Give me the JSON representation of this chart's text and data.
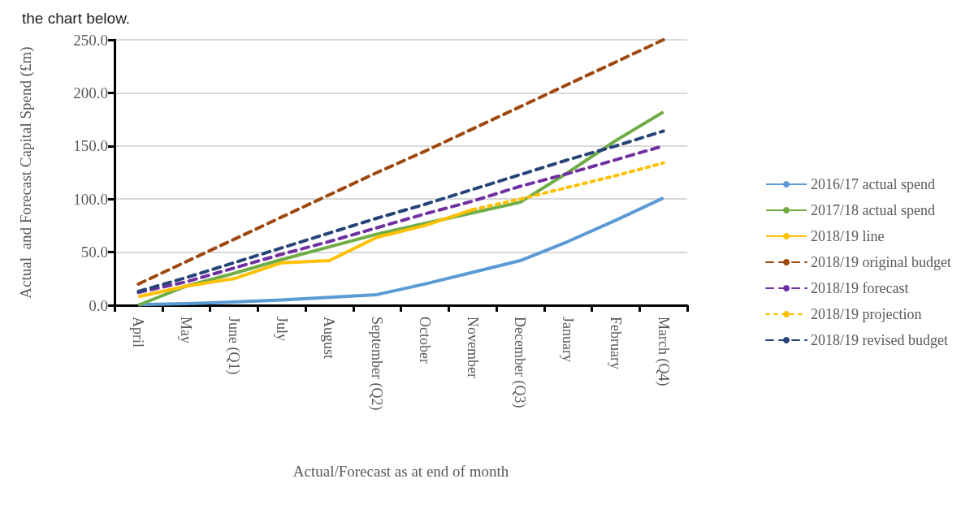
{
  "chart_data": {
    "type": "line",
    "annotations": [
      "the chart below."
    ],
    "xlabel": "Actual/Forecast as at end of month",
    "ylabel": "Actual  and Forecast Capital Spend (£m)",
    "categories": [
      "April",
      "May",
      "June (Q1)",
      "July",
      "August",
      "September (Q2)",
      "October",
      "November",
      "December (Q3)",
      "January",
      "February",
      "March (Q4)"
    ],
    "ylim": [
      0,
      250
    ],
    "yticks": [
      {
        "value": 0,
        "label": "0.0"
      },
      {
        "value": 50,
        "label": "50.0"
      },
      {
        "value": 100,
        "label": "100.0"
      },
      {
        "value": 150,
        "label": "150.0"
      },
      {
        "value": 200,
        "label": "200.0"
      },
      {
        "value": 250,
        "label": "250.0"
      }
    ],
    "grid": "y",
    "legend": "right",
    "marker": "none",
    "series": [
      {
        "name": "2016/17 actual spend",
        "color": "#5b9bd5",
        "line_style": "solid",
        "values": [
          0.5,
          1.5,
          3,
          5,
          7.5,
          10,
          20,
          31,
          42,
          60,
          80,
          101
        ]
      },
      {
        "name": "2017/18 actual spend",
        "color": "#70ad47",
        "line_style": "solid",
        "values": [
          0,
          18,
          30,
          43,
          55,
          67,
          77,
          87,
          97,
          125,
          155,
          182
        ]
      },
      {
        "name": "2018/19 line",
        "color": "#ffc000",
        "line_style": "solid",
        "values": [
          8,
          18,
          25,
          40,
          42,
          64,
          75,
          90,
          null,
          null,
          null,
          null
        ]
      },
      {
        "name": "2018/19 original budget",
        "color": "#9e480e",
        "line_style": "dashed",
        "values": [
          20,
          41,
          62,
          83,
          104,
          125,
          145,
          166,
          187,
          208,
          229,
          250
        ]
      },
      {
        "name": "2018/19 forecast",
        "color": "#7030a0",
        "line_style": "dashed",
        "values": [
          12,
          22,
          35,
          48,
          60,
          73,
          86,
          98,
          112,
          124,
          137,
          150
        ]
      },
      {
        "name": "2018/19 projection",
        "color": "#ffc000",
        "line_style": "dotted",
        "values": [
          null,
          null,
          null,
          null,
          null,
          null,
          null,
          90,
          100,
          111,
          122,
          134
        ]
      },
      {
        "name": "2018/19 revised budget",
        "color": "#264478",
        "line_style": "dashed",
        "values": [
          13,
          26,
          40,
          54,
          68,
          82,
          95,
          109,
          123,
          137,
          150,
          164
        ]
      }
    ]
  }
}
